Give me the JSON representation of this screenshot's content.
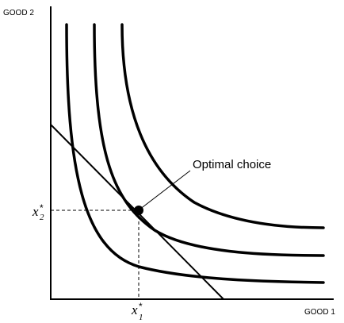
{
  "axes": {
    "y_title": "GOOD 2",
    "x_title": "GOOD 1"
  },
  "annotation": {
    "optimal_label": "Optimal choice"
  },
  "optimum": {
    "x_symbol": "x",
    "x_subscript": "1",
    "y_symbol": "x",
    "y_subscript": "2",
    "star": "*"
  },
  "diagram": {
    "indifference_curve_count": 3,
    "has_budget_line": true,
    "optimum_on": "middle-curve"
  }
}
